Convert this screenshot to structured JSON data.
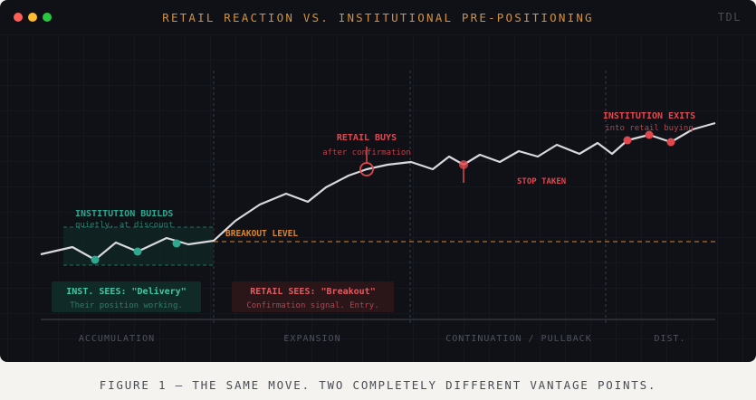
{
  "window": {
    "title": "RETAIL REACTION VS. INSTITUTIONAL PRE-POSITIONING",
    "brand": "TDL"
  },
  "phases": [
    "ACCUMULATION",
    "EXPANSION",
    "CONTINUATION / PULLBACK",
    "DIST."
  ],
  "annotations": {
    "breakout_level": "BREAKOUT LEVEL",
    "institution_builds": "INSTITUTION BUILDS",
    "institution_builds_sub": "quietly, at discount",
    "retail_buys": "RETAIL BUYS",
    "retail_buys_sub": "after confirmation",
    "stop_taken": "STOP TAKEN",
    "institution_exits": "INSTITUTION EXITS",
    "institution_exits_sub": "into retail buying"
  },
  "boxes": {
    "inst_title": "INST. SEES: \"Delivery\"",
    "inst_sub": "Their position working.",
    "retail_title": "RETAIL SEES: \"Breakout\"",
    "retail_sub": "Confirmation signal. Entry."
  },
  "caption": "FIGURE 1 — THE SAME MOVE. TWO COMPLETELY DIFFERENT VANTAGE POINTS.",
  "colors": {
    "background": "#0f1117",
    "price_line": "#d7d9de",
    "institution": "#2fa88f",
    "retail": "#e0484e",
    "breakout": "#d9862e",
    "title": "#d4913b"
  }
}
